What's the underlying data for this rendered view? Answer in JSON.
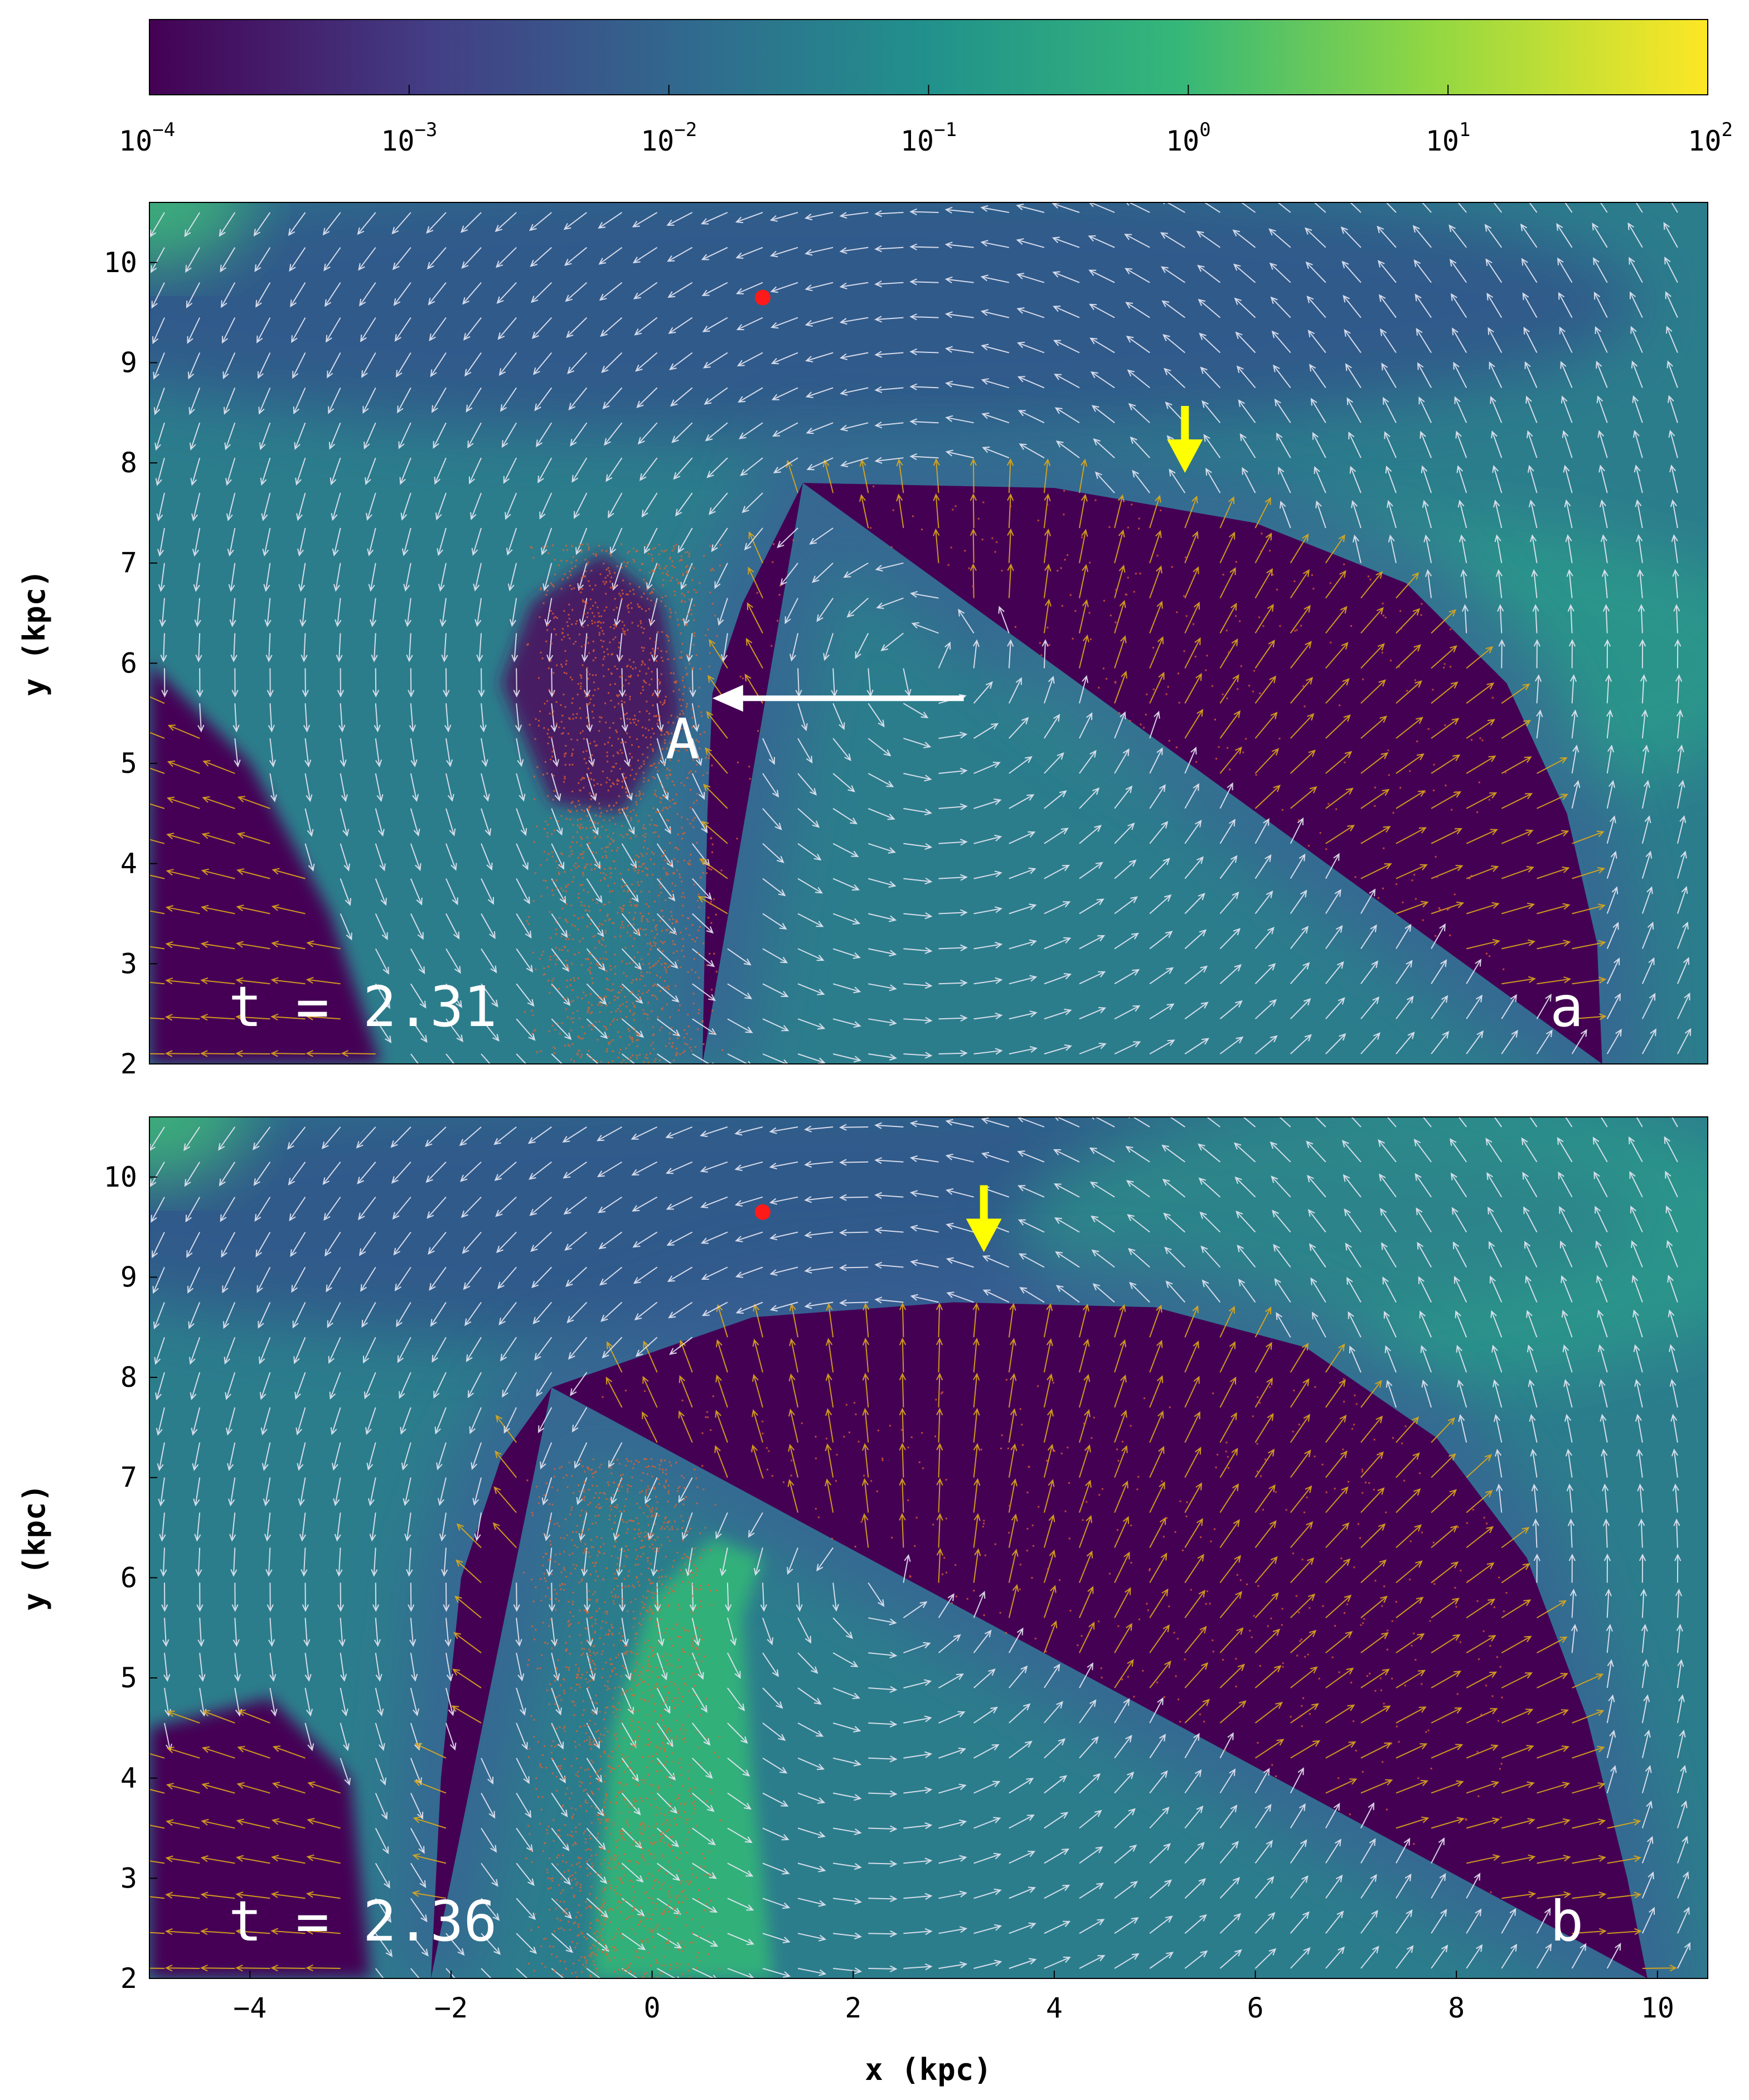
{
  "colorbar": {
    "scale": "log",
    "range": [
      0.0001,
      100
    ],
    "tick_bases": [
      "10",
      "10",
      "10",
      "10",
      "10",
      "10",
      "10"
    ],
    "tick_exponents": [
      "−4",
      "−3",
      "−2",
      "−1",
      "0",
      "1",
      "2"
    ],
    "colormap": [
      "#440154",
      "#3b528b",
      "#21918c",
      "#5ec962",
      "#fde725"
    ]
  },
  "chart_data": [
    {
      "type": "heatmap",
      "panel_letter": "a",
      "time_label": "t = 2.31",
      "ylabel": "y (kpc)",
      "xlim": [
        -5,
        10.5
      ],
      "ylim": [
        2,
        10.6
      ],
      "yticks": [
        "2",
        "3",
        "4",
        "5",
        "6",
        "7",
        "8",
        "9",
        "10"
      ],
      "cavity_boundary": [
        [
          1.5,
          7.8
        ],
        [
          4,
          7.75
        ],
        [
          6,
          7.4
        ],
        [
          7.5,
          6.8
        ],
        [
          8.5,
          5.8
        ],
        [
          9.1,
          4.5
        ],
        [
          9.4,
          3.2
        ],
        [
          9.45,
          2.0
        ]
      ],
      "cavity_left_edge": [
        [
          0.5,
          2.0
        ],
        [
          0.55,
          4.5
        ],
        [
          0.6,
          5.7
        ],
        [
          0.9,
          6.6
        ],
        [
          1.5,
          7.8
        ]
      ],
      "left_cavity": [
        [
          -5,
          2.0
        ],
        [
          -5,
          6.0
        ],
        [
          -4,
          5.0
        ],
        [
          -3.2,
          3.5
        ],
        [
          -2.7,
          2.0
        ]
      ],
      "side_lobe": [
        [
          -1.5,
          5.8
        ],
        [
          -1.2,
          6.6
        ],
        [
          -0.5,
          7.1
        ],
        [
          0.1,
          6.6
        ],
        [
          0.3,
          5.5
        ],
        [
          -0.3,
          4.5
        ],
        [
          -1.0,
          4.6
        ]
      ],
      "red_dot": [
        1.1,
        9.65
      ],
      "yellow_arrow_tip": [
        5.3,
        7.9
      ],
      "annotation_label": "A",
      "annotation_arrow": {
        "from": [
          3.1,
          5.65
        ],
        "to": [
          0.6,
          5.65
        ]
      },
      "colors": {
        "flow_vectors_ambient": "#e8e8f4",
        "flow_vectors_cavity": "#e0a818",
        "tracer_particles": "#e8602c",
        "marker_dot": "#ff1a1a",
        "marker_arrow": "#ffff00"
      }
    },
    {
      "type": "heatmap",
      "panel_letter": "b",
      "time_label": "t = 2.36",
      "ylabel": "y (kpc)",
      "xlabel": "x (kpc)",
      "xlim": [
        -5,
        10.5
      ],
      "ylim": [
        2,
        10.6
      ],
      "xticks": [
        "−4",
        "−2",
        "0",
        "2",
        "4",
        "6",
        "8",
        "10"
      ],
      "yticks": [
        "2",
        "3",
        "4",
        "5",
        "6",
        "7",
        "8",
        "9",
        "10"
      ],
      "cavity_boundary": [
        [
          -1.0,
          7.9
        ],
        [
          1.0,
          8.6
        ],
        [
          3.0,
          8.75
        ],
        [
          5.0,
          8.7
        ],
        [
          6.5,
          8.3
        ],
        [
          7.8,
          7.4
        ],
        [
          8.7,
          6.2
        ],
        [
          9.3,
          4.6
        ],
        [
          9.7,
          3.0
        ],
        [
          9.9,
          2.0
        ]
      ],
      "cavity_left_edge": [
        [
          -2.2,
          2.0
        ],
        [
          -2.1,
          4.0
        ],
        [
          -1.9,
          6.0
        ],
        [
          -1.5,
          7.2
        ],
        [
          -1.0,
          7.9
        ]
      ],
      "left_cavity": [
        [
          -5,
          2.0
        ],
        [
          -5,
          4.5
        ],
        [
          -3.8,
          4.8
        ],
        [
          -3.0,
          4.0
        ],
        [
          -2.8,
          2.0
        ]
      ],
      "filament": [
        [
          -0.6,
          2.0
        ],
        [
          -0.4,
          4.5
        ],
        [
          0.0,
          5.8
        ],
        [
          0.6,
          6.4
        ],
        [
          1.1,
          6.2
        ],
        [
          0.9,
          5.6
        ],
        [
          1.0,
          4.0
        ],
        [
          1.2,
          2.0
        ]
      ],
      "red_dot": [
        1.1,
        9.65
      ],
      "yellow_arrow_tip": [
        3.3,
        9.25
      ],
      "colors": {
        "flow_vectors_ambient": "#e8e8f4",
        "flow_vectors_cavity": "#e0a818",
        "tracer_particles": "#e8602c",
        "marker_dot": "#ff1a1a",
        "marker_arrow": "#ffff00"
      }
    }
  ]
}
